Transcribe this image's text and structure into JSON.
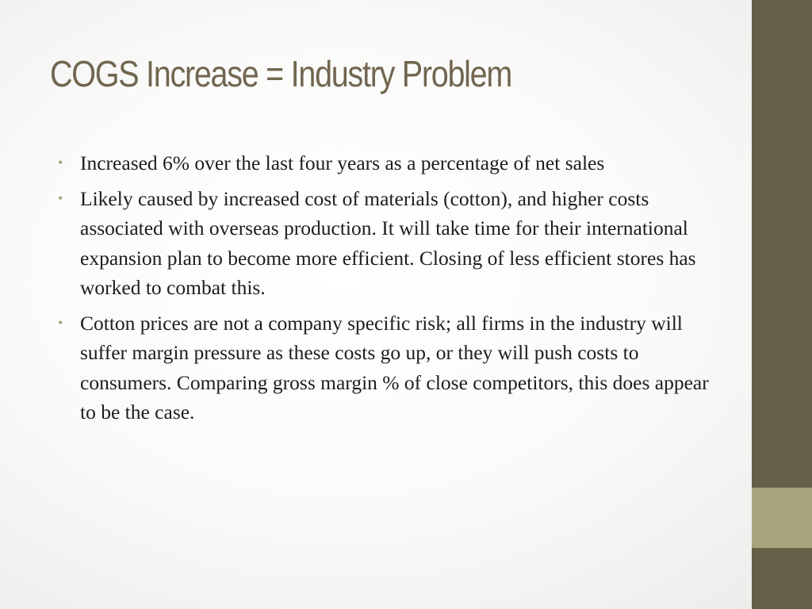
{
  "slide": {
    "title": "COGS Increase = Industry Problem",
    "bullets": [
      {
        "text": "Increased 6% over the last four years as a percentage of net sales"
      },
      {
        "text": "Likely caused by increased cost of materials (cotton), and higher costs associated with overseas production. It will take time for their international expansion plan to become more efficient. Closing of less efficient stores has worked to combat this."
      },
      {
        "text": "Cotton prices are not a company specific risk; all firms in the industry will suffer margin pressure as these costs go up, or they will push costs to consumers. Comparing gross margin % of close competitors, this does appear to be the case."
      }
    ],
    "bullet_symbol": "•"
  },
  "colors": {
    "title": "#726650",
    "side_bar": "#675e48",
    "side_accent": "#a8a47e",
    "bullet": "#a8a47e",
    "body_text": "#1d1d1d"
  }
}
